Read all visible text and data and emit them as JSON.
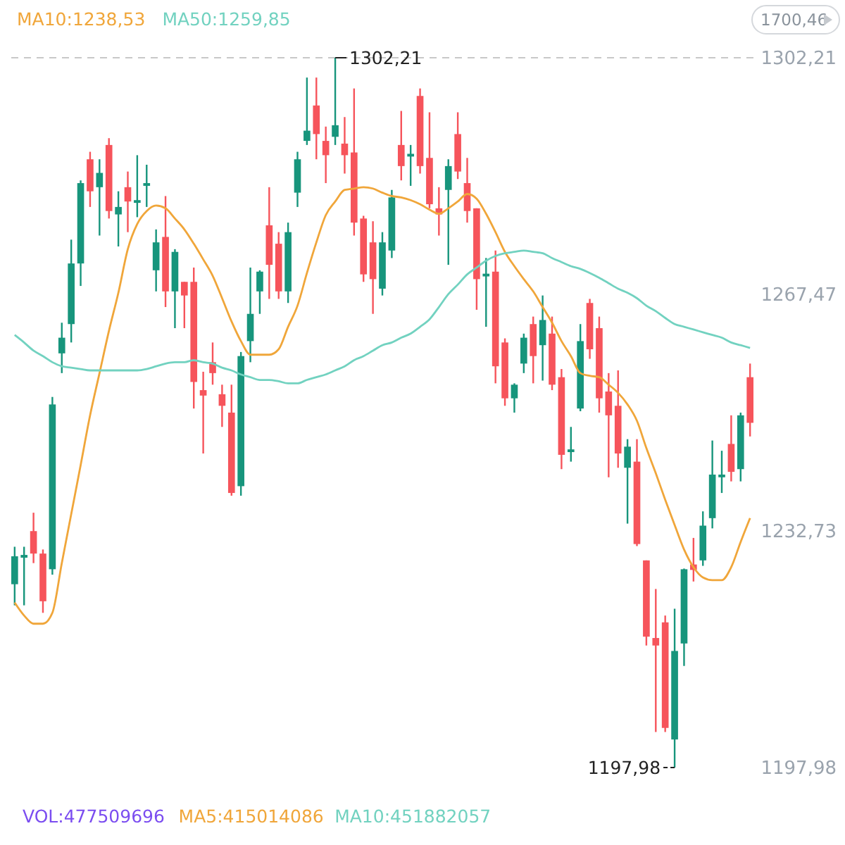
{
  "chart_data": {
    "type": "candlestick",
    "categories": [
      null,
      null,
      null,
      null,
      null,
      null,
      null,
      null,
      null,
      null,
      null,
      null,
      null,
      null,
      null,
      null,
      null,
      null,
      null,
      null,
      null,
      null,
      null,
      null,
      null,
      null,
      null,
      null,
      null,
      null,
      null,
      null,
      null,
      null,
      null,
      null,
      null,
      null,
      null,
      null,
      null,
      null,
      null,
      null,
      null,
      null,
      null,
      null,
      null,
      null,
      null,
      null,
      null,
      null,
      null,
      null,
      null,
      null,
      null,
      null,
      null,
      null,
      null,
      null,
      null,
      null,
      null,
      null,
      null,
      null,
      null,
      null,
      null,
      null,
      null,
      null,
      null,
      null,
      null
    ],
    "ohlc": [
      [
        1224.9,
        1230.4,
        1221.8,
        1229.0
      ],
      [
        1228.8,
        1230.4,
        1221.8,
        1229.2
      ],
      [
        1232.7,
        1235.4,
        1228.0,
        1229.4
      ],
      [
        1229.4,
        1230.0,
        1220.7,
        1222.4
      ],
      [
        1227.1,
        1252.4,
        1226.3,
        1251.3
      ],
      [
        1258.8,
        1263.3,
        1255.9,
        1261.1
      ],
      [
        1263.1,
        1275.5,
        1260.4,
        1272.0
      ],
      [
        1272.0,
        1284.2,
        1268.7,
        1283.8
      ],
      [
        1287.3,
        1288.4,
        1280.3,
        1282.6
      ],
      [
        1283.2,
        1287.3,
        1276.1,
        1285.3
      ],
      [
        1289.4,
        1290.4,
        1278.6,
        1279.7
      ],
      [
        1279.2,
        1282.6,
        1274.5,
        1280.3
      ],
      [
        1283.2,
        1285.5,
        1276.6,
        1281.1
      ],
      [
        1280.9,
        1287.9,
        1278.8,
        1281.3
      ],
      [
        1283.4,
        1286.5,
        1280.3,
        1283.8
      ],
      [
        1271.0,
        1277.0,
        1267.9,
        1275.1
      ],
      [
        1275.9,
        1281.9,
        1265.6,
        1267.9
      ],
      [
        1267.9,
        1274.1,
        1262.5,
        1273.7
      ],
      [
        1269.3,
        1269.3,
        1262.5,
        1267.3
      ],
      [
        1269.3,
        1271.4,
        1250.7,
        1254.6
      ],
      [
        1253.4,
        1256.1,
        1244.1,
        1252.6
      ],
      [
        1257.5,
        1260.4,
        1254.2,
        1255.9
      ],
      [
        1252.8,
        1254.2,
        1248.0,
        1251.1
      ],
      [
        1250.1,
        1254.2,
        1237.9,
        1238.3
      ],
      [
        1239.3,
        1259.0,
        1237.9,
        1258.4
      ],
      [
        1260.6,
        1271.4,
        1257.5,
        1264.6
      ],
      [
        1267.9,
        1271.0,
        1264.6,
        1270.8
      ],
      [
        1277.6,
        1283.2,
        1266.8,
        1271.8
      ],
      [
        1274.9,
        1276.6,
        1266.8,
        1267.9
      ],
      [
        1267.9,
        1278.0,
        1266.2,
        1276.6
      ],
      [
        1282.4,
        1288.4,
        1280.3,
        1287.3
      ],
      [
        1290.0,
        1299.3,
        1289.4,
        1291.5
      ],
      [
        1295.2,
        1299.3,
        1287.3,
        1291.0
      ],
      [
        1290.0,
        1292.1,
        1283.8,
        1287.9
      ],
      [
        1290.6,
        1302.21,
        1289.4,
        1292.3
      ],
      [
        1289.6,
        1293.5,
        1285.2,
        1287.9
      ],
      [
        1288.3,
        1297.7,
        1276.1,
        1278.0
      ],
      [
        1278.6,
        1279.0,
        1269.3,
        1270.4
      ],
      [
        1275.1,
        1278.2,
        1264.6,
        1269.7
      ],
      [
        1268.3,
        1276.6,
        1267.3,
        1275.1
      ],
      [
        1273.9,
        1282.8,
        1272.8,
        1281.7
      ],
      [
        1289.4,
        1294.4,
        1284.2,
        1286.3
      ],
      [
        1287.7,
        1289.4,
        1283.4,
        1288.1
      ],
      [
        1296.6,
        1297.7,
        1285.2,
        1286.3
      ],
      [
        1287.5,
        1294.2,
        1280.1,
        1280.7
      ],
      [
        1280.1,
        1283.2,
        1276.1,
        1279.2
      ],
      [
        1282.8,
        1287.3,
        1271.8,
        1286.3
      ],
      [
        1291.0,
        1294.2,
        1284.4,
        1285.5
      ],
      [
        1283.8,
        1287.5,
        1278.0,
        1279.7
      ],
      [
        1280.1,
        1280.1,
        1265.2,
        1269.7
      ],
      [
        1270.1,
        1272.8,
        1262.7,
        1270.5
      ],
      [
        1270.8,
        1273.9,
        1254.4,
        1256.9
      ],
      [
        1260.4,
        1261.0,
        1251.1,
        1252.2
      ],
      [
        1252.2,
        1254.4,
        1250.1,
        1254.2
      ],
      [
        1257.3,
        1261.7,
        1255.9,
        1261.1
      ],
      [
        1263.1,
        1264.2,
        1254.4,
        1258.4
      ],
      [
        1260.0,
        1267.3,
        1254.8,
        1263.7
      ],
      [
        1261.7,
        1264.2,
        1253.4,
        1254.2
      ],
      [
        1255.3,
        1256.5,
        1241.8,
        1243.9
      ],
      [
        1244.3,
        1248.0,
        1242.9,
        1244.7
      ],
      [
        1250.7,
        1263.1,
        1250.3,
        1260.6
      ],
      [
        1266.2,
        1266.8,
        1258.0,
        1259.4
      ],
      [
        1262.5,
        1264.2,
        1250.1,
        1252.2
      ],
      [
        1253.2,
        1255.9,
        1240.6,
        1249.7
      ],
      [
        1251.1,
        1256.3,
        1242.0,
        1244.1
      ],
      [
        1242.0,
        1246.2,
        1233.8,
        1245.1
      ],
      [
        1242.9,
        1246.2,
        1230.5,
        1230.8
      ],
      [
        1228.4,
        1228.4,
        1215.9,
        1217.2
      ],
      [
        1217.0,
        1224.2,
        1203.2,
        1215.9
      ],
      [
        1219.3,
        1220.3,
        1203.2,
        1203.8
      ],
      [
        1202.1,
        1221.3,
        1197.98,
        1215.1
      ],
      [
        1216.2,
        1227.2,
        1212.9,
        1227.1
      ],
      [
        1227.8,
        1231.7,
        1225.3,
        1227.0
      ],
      [
        1228.4,
        1235.6,
        1227.6,
        1233.5
      ],
      [
        1234.6,
        1246.0,
        1233.1,
        1241.0
      ],
      [
        1240.6,
        1244.5,
        1238.3,
        1241.0
      ],
      [
        1245.5,
        1249.7,
        1240.0,
        1241.4
      ],
      [
        1241.8,
        1250.1,
        1240.0,
        1249.7
      ],
      [
        1255.3,
        1257.3,
        1246.6,
        1248.6
      ]
    ],
    "series": [
      {
        "type": "line",
        "name": "MA10:1238,53",
        "color": "#f0a63a",
        "values": [
          1222.2,
          1220.3,
          1219.1,
          1219.1,
          1220.7,
          1228.0,
          1235.2,
          1242.4,
          1249.7,
          1255.9,
          1262.1,
          1267.7,
          1274.1,
          1277.8,
          1279.7,
          1280.5,
          1280.1,
          1278.6,
          1277.0,
          1274.9,
          1272.6,
          1270.2,
          1266.9,
          1263.5,
          1260.6,
          1258.6,
          1258.6,
          1258.6,
          1259.4,
          1262.7,
          1265.8,
          1270.6,
          1275.1,
          1279.1,
          1281.1,
          1282.8,
          1283.0,
          1283.2,
          1283.0,
          1282.4,
          1281.9,
          1281.7,
          1281.3,
          1280.7,
          1279.9,
          1279.3,
          1280.1,
          1281.1,
          1282.2,
          1281.5,
          1279.3,
          1276.6,
          1273.7,
          1271.6,
          1269.7,
          1267.9,
          1265.6,
          1263.3,
          1260.6,
          1258.4,
          1255.9,
          1255.5,
          1255.3,
          1254.2,
          1253.0,
          1251.3,
          1248.9,
          1244.9,
          1241.2,
          1237.3,
          1233.6,
          1230.0,
          1227.4,
          1225.9,
          1225.5,
          1225.5,
          1227.4,
          1231.1,
          1234.6
        ]
      },
      {
        "type": "line",
        "name": "MA50:1259,85",
        "color": "#72d2c0",
        "values": [
          1261.5,
          1260.4,
          1259.2,
          1258.4,
          1257.5,
          1256.9,
          1256.7,
          1256.5,
          1256.3,
          1256.3,
          1256.3,
          1256.3,
          1256.3,
          1256.3,
          1256.5,
          1256.9,
          1257.3,
          1257.5,
          1257.5,
          1257.8,
          1257.5,
          1257.3,
          1256.7,
          1256.3,
          1255.7,
          1255.3,
          1254.9,
          1254.9,
          1254.7,
          1254.4,
          1254.4,
          1254.9,
          1255.3,
          1255.7,
          1256.3,
          1256.9,
          1257.8,
          1258.4,
          1259.2,
          1260.0,
          1260.4,
          1261.1,
          1261.7,
          1262.7,
          1263.8,
          1265.6,
          1267.5,
          1268.9,
          1270.4,
          1271.4,
          1272.4,
          1273.1,
          1273.5,
          1273.7,
          1273.9,
          1273.7,
          1273.5,
          1272.8,
          1272.2,
          1271.6,
          1271.2,
          1270.6,
          1269.9,
          1269.1,
          1268.3,
          1267.7,
          1266.9,
          1265.8,
          1265.0,
          1264.0,
          1263.1,
          1262.7,
          1262.3,
          1261.9,
          1261.5,
          1261.1,
          1260.4,
          1260.0,
          1259.6
        ]
      }
    ],
    "ylim": [
      1197.98,
      1302.21
    ],
    "yticks": [
      {
        "value": 1302.21,
        "label": "1302,21"
      },
      {
        "value": 1267.47,
        "label": "1267,47"
      },
      {
        "value": 1232.73,
        "label": "1232,73"
      },
      {
        "value": 1197.98,
        "label": "1197,98"
      }
    ],
    "ref_lines": [
      {
        "axis": "y",
        "value": 1302.21,
        "color": "#c8c8c8",
        "line_style": "dashed"
      }
    ],
    "annotations": [
      "1700,46",
      "VOL:477509696",
      "MA5:415014086",
      "MA10:451882057",
      {
        "text": "1302,21",
        "y": 1302.21
      },
      "1197,98"
    ],
    "legend": "top left"
  }
}
